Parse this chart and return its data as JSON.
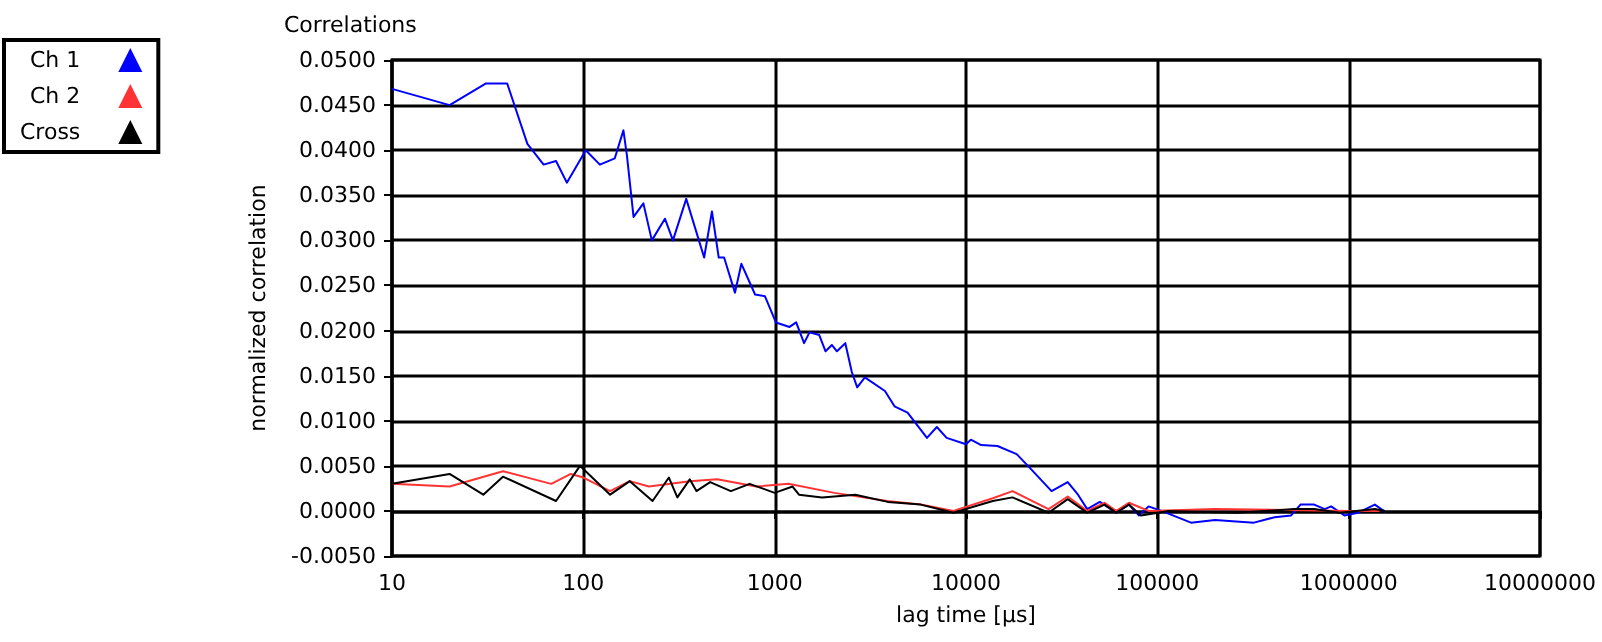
{
  "chart_data": {
    "type": "line",
    "title": "Correlations",
    "xlabel": "lag time [µs]",
    "ylabel": "normalized correlation",
    "log": "x",
    "grid": true,
    "legend": "top left",
    "marker": "none",
    "line_style": "solid",
    "xlim": [
      10,
      10000000
    ],
    "xticks": [
      10,
      100,
      1000,
      10000,
      100000,
      1000000,
      10000000
    ],
    "ylim": [
      -0.005,
      0.05
    ],
    "yticks": [
      {
        "value": -0.005,
        "label": "-0.0050"
      },
      {
        "value": 0,
        "label": "0.0000"
      },
      {
        "value": 0.005,
        "label": "0.0050"
      },
      {
        "value": 0.01,
        "label": "0.0100"
      },
      {
        "value": 0.015,
        "label": "0.0150"
      },
      {
        "value": 0.02,
        "label": "0.0200"
      },
      {
        "value": 0.025,
        "label": "0.0250"
      },
      {
        "value": 0.03,
        "label": "0.0300"
      },
      {
        "value": 0.035,
        "label": "0.0350"
      },
      {
        "value": 0.04,
        "label": "0.0400"
      },
      {
        "value": 0.045,
        "label": "0.0450"
      },
      {
        "value": 0.05,
        "label": "0.0500"
      }
    ],
    "series": [
      {
        "name": "Ch 1",
        "color": "#0000ff",
        "x": [
          10,
          20,
          31,
          40,
          51,
          62,
          72,
          82,
          103,
          122,
          146,
          162,
          169,
          183,
          206,
          228,
          267,
          294,
          345,
          428,
          470,
          510,
          544,
          620,
          670,
          790,
          890,
          1015,
          1196,
          1295,
          1425,
          1520,
          1710,
          1845,
          1990,
          2115,
          2340,
          2530,
          2700,
          2960,
          3770,
          4230,
          4950,
          6250,
          7040,
          7920,
          10000,
          10600,
          12000,
          14600,
          18400,
          21500,
          28000,
          34000,
          38500,
          43000,
          50000,
          61000,
          71000,
          80000,
          90000,
          105000,
          150000,
          200000,
          320000,
          410000,
          500000,
          560000,
          660000,
          750000,
          810000,
          950000,
          1120000,
          1370000,
          1550000
        ],
        "values": [
          0.0468,
          0.045,
          0.0474,
          0.0474,
          0.0407,
          0.0384,
          0.0388,
          0.0364,
          0.04,
          0.0384,
          0.0391,
          0.0422,
          0.0394,
          0.0326,
          0.0341,
          0.03,
          0.0324,
          0.03,
          0.0346,
          0.0281,
          0.0332,
          0.0281,
          0.0281,
          0.0242,
          0.0274,
          0.024,
          0.0238,
          0.0209,
          0.0204,
          0.0209,
          0.0186,
          0.0198,
          0.0195,
          0.0177,
          0.0184,
          0.0177,
          0.0186,
          0.0154,
          0.0137,
          0.0148,
          0.0133,
          0.0116,
          0.0109,
          0.0081,
          0.0093,
          0.0081,
          0.0074,
          0.0079,
          0.0073,
          0.0072,
          0.0063,
          0.0048,
          0.0022,
          0.0032,
          0.0018,
          0.0002,
          0.001,
          -0.0002,
          0.0007,
          -0.0005,
          0.0005,
          0,
          -0.0013,
          -0.001,
          -0.0013,
          -0.0007,
          -0.0005,
          0.0007,
          0.0007,
          0.0002,
          0.0005,
          -0.0005,
          -0.0002,
          0.0007,
          -0.0001
        ]
      },
      {
        "name": "Ch 2",
        "color": "#ff3333",
        "x": [
          10,
          20,
          38,
          68,
          86,
          100,
          138,
          175,
          220,
          360,
          500,
          800,
          1180,
          2050,
          3870,
          5800,
          8600,
          13800,
          17500,
          27000,
          34000,
          43000,
          53000,
          61000,
          71000,
          90000,
          200000,
          1000000,
          1450000
        ],
        "values": [
          0.003,
          0.0027,
          0.0044,
          0.003,
          0.0041,
          0.0037,
          0.0022,
          0.0033,
          0.0027,
          0.0033,
          0.0035,
          0.0027,
          0.003,
          0.002,
          0.0011,
          0.0007,
          0,
          0.0014,
          0.0022,
          0.0002,
          0.0016,
          0,
          0.0009,
          0,
          0.0009,
          0,
          0.0002,
          0,
          0
        ]
      },
      {
        "name": "Cross",
        "color": "#000000",
        "x": [
          10,
          20,
          30,
          38,
          72,
          96,
          138,
          175,
          230,
          280,
          310,
          360,
          390,
          460,
          590,
          740,
          1000,
          1240,
          1340,
          1770,
          2640,
          3900,
          5800,
          8600,
          13800,
          17500,
          27000,
          34000,
          43000,
          53000,
          61000,
          71000,
          82000,
          115000,
          260000,
          520000,
          660000,
          900000,
          1370000,
          1550000
        ],
        "values": [
          0.003,
          0.0041,
          0.0018,
          0.0038,
          0.0011,
          0.005,
          0.0018,
          0.0033,
          0.0011,
          0.0037,
          0.0015,
          0.0035,
          0.0022,
          0.0032,
          0.0022,
          0.003,
          0.002,
          0.0027,
          0.0018,
          0.0015,
          0.0018,
          0.001,
          0.0007,
          -0.0002,
          0.0011,
          0.0015,
          -0.0002,
          0.0013,
          -0.0002,
          0.0007,
          -0.0002,
          0.0007,
          -0.0005,
          0,
          -0.0002,
          0.0002,
          0.0002,
          -0.0002,
          0.0002,
          0
        ]
      }
    ]
  }
}
